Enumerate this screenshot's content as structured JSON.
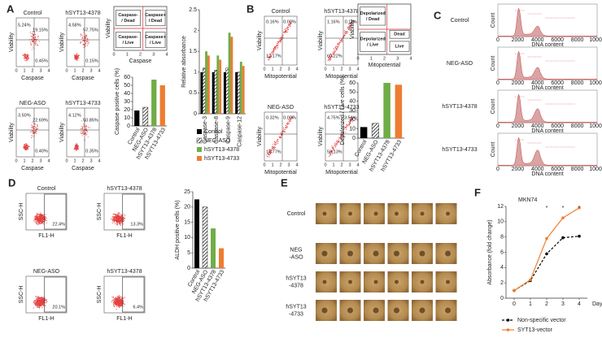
{
  "panels": {
    "letters": [
      "A",
      "B",
      "C",
      "D",
      "E",
      "F"
    ],
    "a": {
      "ticks": [
        0,
        1,
        2,
        3,
        4
      ],
      "x_label": "Caspase",
      "y_label": "Viability",
      "plots": [
        {
          "title": "Control",
          "gates": [
            "5.24%",
            "19.15%",
            "0.45%"
          ]
        },
        {
          "title": "hSYT13-4378",
          "gates": [
            "4.58%",
            "57.75%",
            "0.15%"
          ]
        },
        {
          "title": "NEG-ASO",
          "gates": [
            "3.50%",
            "22.69%",
            "0.40%"
          ]
        },
        {
          "title": "hSYT13-4733",
          "gates": [
            "4.12%",
            "50.85%",
            "0.35%"
          ]
        }
      ],
      "scheme": {
        "quadrants": [
          [
            "Caspase-",
            "/ Dead"
          ],
          [
            "Caspase+",
            "/ Dead"
          ],
          [
            "Caspase-",
            "/ Live"
          ],
          [
            "Caspase+",
            "/ Live"
          ]
        ]
      }
    },
    "b": {
      "ticks": [
        0,
        1,
        2,
        3,
        4
      ],
      "x_label": "Mitopotential",
      "y_label": "Viability",
      "plots": [
        {
          "title": "Control",
          "gates": [
            "0.16%",
            "0.00%",
            "12.17%"
          ]
        },
        {
          "title": "hSYT13-4378",
          "gates": [
            "1.16%",
            "0.11%",
            "60.22%"
          ]
        },
        {
          "title": "NEG-ASO",
          "gates": [
            "0.32%",
            "0.00%",
            "15.77%"
          ]
        },
        {
          "title": "hSYT13-4733",
          "gates": [
            "4.75%",
            "3.51%",
            "58.13%"
          ]
        }
      ],
      "scheme": {
        "quadrants": [
          [
            "Depolarized",
            "/ Dead"
          ],
          [
            "Dead"
          ],
          [
            "Depolarized",
            "/ Live"
          ],
          [
            "Live"
          ]
        ]
      }
    },
    "c": {
      "x_label": "DNA content",
      "y_label": "Count",
      "xticks": [
        0,
        2000,
        4000,
        6000,
        8000,
        10000
      ],
      "samples": [
        "Control",
        "NEG-ASO",
        "hSYT13-4378",
        "hSYT13-4733"
      ]
    },
    "d": {
      "x_label": "FL1-H",
      "y_label": "SSC-H",
      "plots": [
        {
          "title": "Control",
          "gate": "22.4%"
        },
        {
          "title": "hSYT13-4378",
          "gate": "13.3%"
        },
        {
          "title": "NEG-ASO",
          "gate": "20.1%"
        },
        {
          "title": "hSYT13-4378",
          "gate": "6.4%"
        }
      ]
    },
    "e": {
      "rows": [
        [
          "Control"
        ],
        [
          "NEG",
          "-ASO"
        ],
        [
          "hSYT13",
          "-4378"
        ],
        [
          "hSYT13",
          "-4733"
        ]
      ]
    }
  },
  "chart_data": [
    {
      "type": "bar",
      "y_label": "Caspase positive cells (%)",
      "categories": [
        "Control",
        "NEG-ASO",
        "hSYT13-4378",
        "hSYT13-4733"
      ],
      "values": [
        19,
        23,
        57,
        50
      ],
      "colors": [
        "#000000",
        "hatch",
        "#70ad47",
        "#ed7d31"
      ],
      "ylim": [
        0,
        60
      ],
      "yticks": [
        0,
        10,
        20,
        30,
        40,
        50,
        60
      ]
    },
    {
      "type": "bar",
      "y_label": "Relative absorbance",
      "categories": [
        "Caspase-3",
        "Caspase-8",
        "Caspase-9",
        "Caspase-12"
      ],
      "series": [
        {
          "name": "Control",
          "color": "#000000",
          "values": [
            1,
            1,
            1,
            1
          ]
        },
        {
          "name": "NEG-ASO",
          "color": "hatch",
          "values": [
            1.1,
            1.05,
            1.1,
            1.0
          ]
        },
        {
          "name": "hSYT13-4378",
          "color": "#70ad47",
          "values": [
            1.5,
            1.4,
            1.95,
            1.25
          ]
        },
        {
          "name": "hSYT13-4733",
          "color": "#ed7d31",
          "values": [
            1.4,
            1.3,
            1.85,
            1.15
          ]
        }
      ],
      "ylim": [
        0,
        2.5
      ],
      "yticks": [
        0,
        0.5,
        1,
        1.5,
        2,
        2.5
      ]
    },
    {
      "type": "bar",
      "y_label": "Depolarized / Live cells (%)",
      "categories": [
        "Control",
        "NEG-ASO",
        "hSYT13-4378",
        "hSYT13-4733"
      ],
      "values": [
        12,
        16,
        60,
        58
      ],
      "colors": [
        "#000000",
        "hatch",
        "#70ad47",
        "#ed7d31"
      ],
      "ylim": [
        0,
        60
      ],
      "yticks": [
        0,
        10,
        20,
        30,
        40,
        50,
        60
      ]
    },
    {
      "type": "bar",
      "y_label": "ALDH positive cells (%)",
      "categories": [
        "Control",
        "NEG-ASO",
        "hSYT13-4378",
        "hSYT13-4733"
      ],
      "values": [
        22.5,
        20,
        13,
        6.5
      ],
      "colors": [
        "#000000",
        "hatch",
        "#70ad47",
        "#ed7d31"
      ],
      "ylim": [
        0,
        25
      ],
      "yticks": [
        0,
        5,
        10,
        15,
        20,
        25
      ]
    },
    {
      "type": "line",
      "title": "MKN74",
      "x_label": "Day",
      "y_label": "Absorbance (fold change)",
      "x": [
        0,
        1,
        2,
        3,
        4
      ],
      "series": [
        {
          "name": "Non-specific vector",
          "color": "#000000",
          "dashed": true,
          "values": [
            1,
            2.3,
            5.8,
            7.9,
            8.1
          ]
        },
        {
          "name": "SYT13-vector",
          "color": "#ed7d31",
          "dashed": false,
          "values": [
            1,
            2.4,
            7.8,
            10.5,
            11.8
          ]
        }
      ],
      "xlim": [
        -0.5,
        4.5
      ],
      "xticks": [
        0,
        1,
        2,
        3,
        4
      ],
      "ylim": [
        0,
        12
      ],
      "yticks": [
        0,
        2,
        4,
        6,
        8,
        10,
        12
      ],
      "annotations": [
        {
          "x": 2,
          "text": "*"
        },
        {
          "x": 3,
          "text": "*"
        },
        {
          "x": 4,
          "text": "*"
        }
      ]
    }
  ]
}
